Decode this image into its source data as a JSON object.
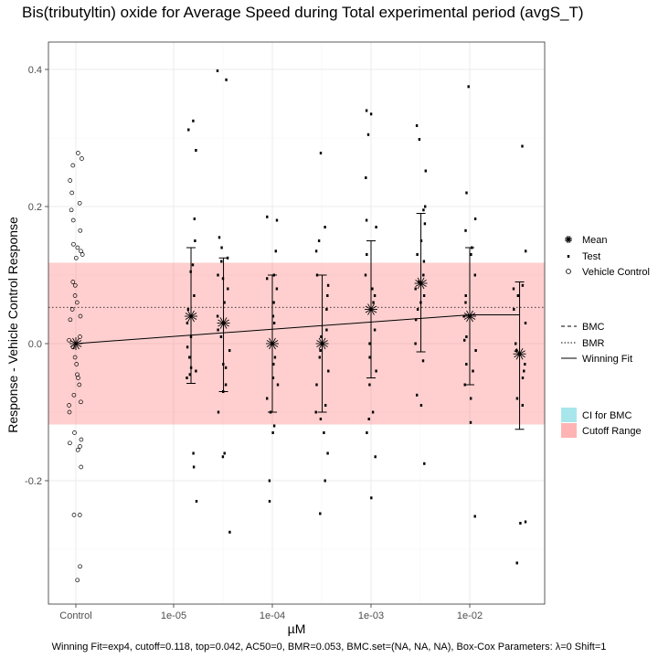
{
  "chart_data": {
    "type": "scatter",
    "title": "Bis(tributyltin) oxide for Average Speed during Total experimental period (avgS_T)",
    "xlabel": "µM",
    "ylabel": "Response - Vehicle Control Response",
    "x_ticks": [
      "Control",
      "1e-05",
      "1e-04",
      "1e-03",
      "1e-02"
    ],
    "y_ticks": [
      "-0.2",
      "0.0",
      "0.2",
      "0.4"
    ],
    "ylim": [
      -0.38,
      0.44
    ],
    "grid": true,
    "cutoff": 0.118,
    "bmr": 0.053,
    "colors": {
      "cutoff_fill": "#ff8080",
      "ci_fill": "#5fd3dc",
      "points": "#000000",
      "grid": "#ebebeb"
    },
    "control_points": [
      0.278,
      0.27,
      0.26,
      0.238,
      0.22,
      0.205,
      0.195,
      0.18,
      0.165,
      0.145,
      0.14,
      0.135,
      0.13,
      0.125,
      0.09,
      0.085,
      0.07,
      0.06,
      0.05,
      0.04,
      0.035,
      0.01,
      0.005,
      -0.005,
      -0.02,
      -0.03,
      -0.045,
      -0.05,
      -0.06,
      -0.075,
      -0.085,
      -0.09,
      -0.1,
      -0.13,
      -0.14,
      -0.145,
      -0.15,
      -0.155,
      -0.18,
      -0.25,
      -0.25,
      -0.325,
      -0.345
    ],
    "concentrations": [
      {
        "x": 1.5e-05,
        "mean": 0.04,
        "ci_low": -0.058,
        "ci_high": 0.14,
        "tests": [
          0.325,
          0.312,
          0.282,
          0.182,
          0.15,
          0.115,
          0.105,
          0.07,
          0.05,
          0.03,
          0.01,
          -0.005,
          -0.02,
          -0.035,
          -0.04,
          -0.045,
          -0.05,
          -0.16,
          -0.18,
          -0.23
        ]
      },
      {
        "x": 3.2e-05,
        "mean": 0.03,
        "ci_low": -0.07,
        "ci_high": 0.125,
        "tests": [
          0.398,
          0.385,
          0.155,
          0.14,
          0.125,
          0.12,
          0.1,
          0.095,
          0.08,
          0.06,
          0.04,
          0.02,
          0.01,
          -0.01,
          -0.03,
          -0.035,
          -0.06,
          -0.07,
          -0.1,
          -0.16,
          -0.165,
          -0.275
        ]
      },
      {
        "x": 0.0001,
        "mean": 0.0,
        "ci_low": -0.1,
        "ci_high": 0.1,
        "tests": [
          0.185,
          0.18,
          0.135,
          0.1,
          0.095,
          0.08,
          0.06,
          0.04,
          0.03,
          0.0,
          -0.02,
          -0.03,
          -0.05,
          -0.06,
          -0.08,
          -0.1,
          -0.12,
          -0.13,
          -0.2,
          -0.23
        ]
      },
      {
        "x": 0.00032,
        "mean": 0.0,
        "ci_low": -0.1,
        "ci_high": 0.1,
        "tests": [
          0.278,
          0.17,
          0.15,
          0.135,
          0.1,
          0.085,
          0.07,
          0.05,
          0.02,
          0.01,
          -0.01,
          -0.02,
          -0.04,
          -0.06,
          -0.09,
          -0.1,
          -0.11,
          -0.13,
          -0.16,
          -0.2,
          -0.248
        ]
      },
      {
        "x": 0.001,
        "mean": 0.05,
        "ci_low": -0.05,
        "ci_high": 0.15,
        "tests": [
          0.34,
          0.335,
          0.305,
          0.242,
          0.18,
          0.17,
          0.13,
          0.1,
          0.08,
          0.07,
          0.06,
          0.02,
          0.0,
          -0.02,
          -0.04,
          -0.06,
          -0.1,
          -0.11,
          -0.13,
          -0.165,
          -0.225
        ]
      },
      {
        "x": 0.0032,
        "mean": 0.088,
        "ci_low": -0.012,
        "ci_high": 0.19,
        "tests": [
          0.318,
          0.298,
          0.252,
          0.2,
          0.195,
          0.175,
          0.15,
          0.13,
          0.12,
          0.1,
          0.09,
          0.08,
          0.07,
          0.06,
          0.05,
          0.035,
          0.0,
          -0.025,
          -0.075,
          -0.09,
          -0.175
        ]
      },
      {
        "x": 0.01,
        "mean": 0.04,
        "ci_low": -0.06,
        "ci_high": 0.14,
        "tests": [
          0.375,
          0.22,
          0.182,
          0.165,
          0.14,
          0.13,
          0.1,
          0.07,
          0.06,
          0.04,
          0.01,
          0.005,
          -0.01,
          -0.03,
          -0.04,
          -0.06,
          -0.08,
          -0.115,
          -0.252
        ]
      },
      {
        "x": 0.032,
        "mean": -0.015,
        "ci_low": -0.125,
        "ci_high": 0.09,
        "tests": [
          0.288,
          0.135,
          0.085,
          0.08,
          0.07,
          0.05,
          0.03,
          0.0,
          -0.01,
          -0.03,
          -0.04,
          -0.05,
          -0.08,
          -0.09,
          -0.26,
          -0.262,
          -0.32
        ]
      }
    ],
    "fit_curve": [
      [
        1e-06,
        0.0
      ],
      [
        1e-05,
        0.0105
      ],
      [
        0.0001,
        0.021
      ],
      [
        0.001,
        0.0315
      ],
      [
        0.01,
        0.042
      ],
      [
        0.032,
        0.042
      ]
    ],
    "legend": {
      "markers": [
        "Mean",
        "Test",
        "Vehicle Control"
      ],
      "lines": [
        "BMC",
        "BMR",
        "Winning Fit"
      ],
      "fills": [
        "CI for BMC",
        "Cutoff Range"
      ],
      "placement": "right"
    },
    "caption": "Winning Fit=exp4, cutoff=0.118, top=0.042, AC50=0, BMR=0.053, BMC.set=(NA, NA, NA), Box-Cox Parameters: λ=0 Shift=1"
  }
}
